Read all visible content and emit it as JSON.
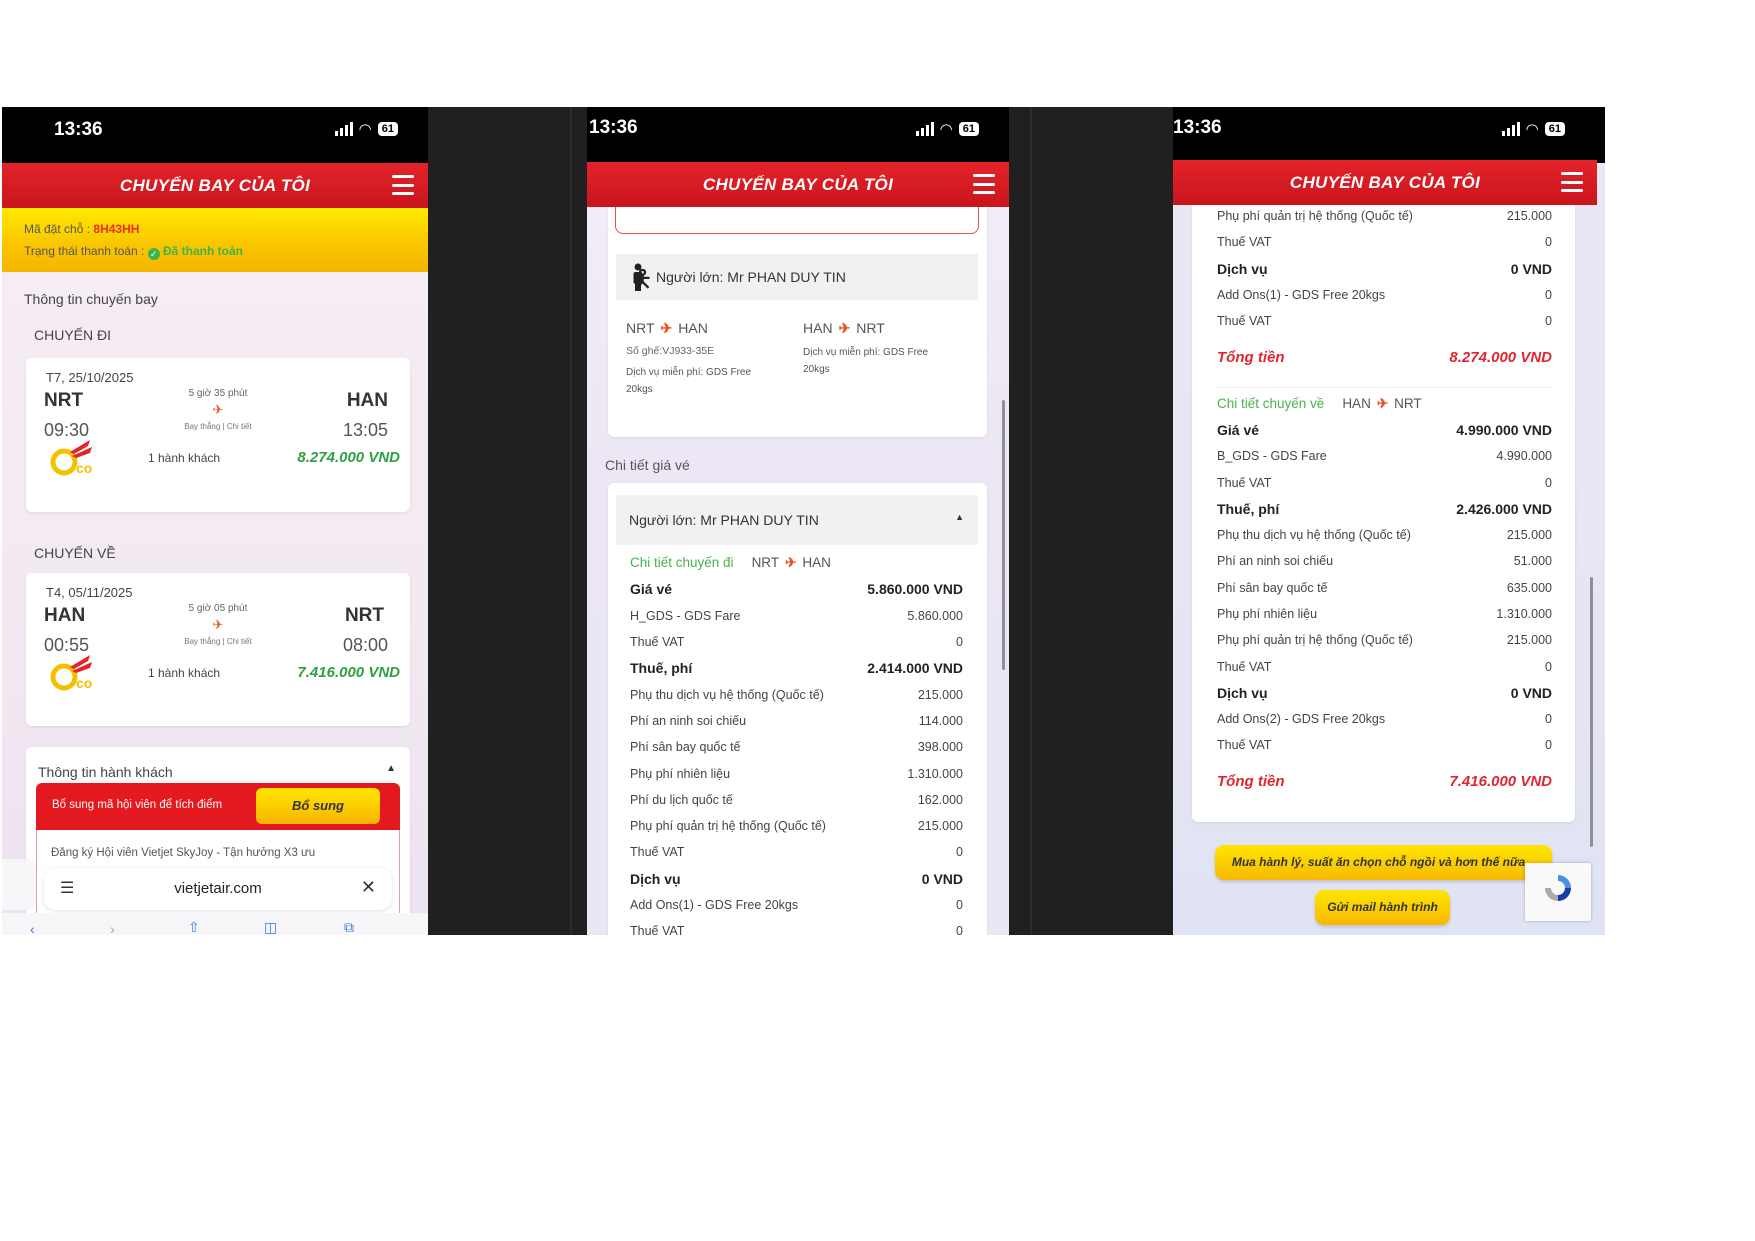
{
  "status_bar": {
    "time": "13:36",
    "battery": "61"
  },
  "app_header": {
    "title": "CHUYẾN BAY CỦA TÔI"
  },
  "phone1": {
    "booking_label": "Mã đặt chỗ :",
    "booking_code": "8H43HH",
    "payment_label": "Trạng thái thanh toán :",
    "payment_status": "Đã thanh toán",
    "section_title": "Thông tin chuyến bay",
    "outbound": {
      "heading": "CHUYẾN ĐI",
      "date": "T7, 25/10/2025",
      "from": "NRT",
      "to": "HAN",
      "depart": "09:30",
      "arrive": "13:05",
      "duration": "5 giờ 35 phút",
      "detail": "Bay thẳng | Chi tiết",
      "pax": "1 hành khách",
      "price": "8.274.000 VND",
      "fare_class": "Eco"
    },
    "return": {
      "heading": "CHUYẾN VỀ",
      "date": "T4, 05/11/2025",
      "from": "HAN",
      "to": "NRT",
      "depart": "00:55",
      "arrive": "08:00",
      "duration": "5 giờ 05 phút",
      "detail": "Bay thẳng | Chi tiết",
      "pax": "1 hành khách",
      "price": "7.416.000 VND",
      "fare_class": "Eco"
    },
    "passenger_panel_title": "Thông tin hành khách",
    "member_banner": "Bổ sung mã hội viên để tích điểm",
    "member_button": "Bổ sung",
    "member_promo": "Đăng ký Hội viên Vietjet SkyJoy - Tận hưởng X3 ưu",
    "url": "vietjetair.com"
  },
  "phone2": {
    "passenger": "Người lớn: Mr PHAN DUY TIN",
    "leg1": {
      "from": "NRT",
      "to": "HAN",
      "seat": "Số ghế:VJ933-35E",
      "service": "Dịch vụ miễn phí: GDS Free 20kgs"
    },
    "leg2": {
      "from": "HAN",
      "to": "NRT",
      "service": "Dịch vụ miễn phí: GDS Free 20kgs"
    },
    "fare_section_title": "Chi tiết giá vé",
    "fare_passenger": "Người lớn: Mr PHAN DUY TIN",
    "rows": [
      {
        "type": "section",
        "label": "Chi tiết chuyến đi",
        "from": "NRT",
        "to": "HAN"
      },
      {
        "type": "bold",
        "label": "Giá vé",
        "value": "5.860.000 VND"
      },
      {
        "type": "normal",
        "label": "H_GDS - GDS Fare",
        "value": "5.860.000"
      },
      {
        "type": "normal",
        "label": "Thuế VAT",
        "value": "0"
      },
      {
        "type": "bold",
        "label": "Thuế, phí",
        "value": "2.414.000 VND"
      },
      {
        "type": "normal",
        "label": "Phụ thu dịch vụ hệ thống (Quốc tế)",
        "value": "215.000"
      },
      {
        "type": "normal",
        "label": "Phí an ninh soi chiếu",
        "value": "114.000"
      },
      {
        "type": "normal",
        "label": "Phí sân bay quốc tế",
        "value": "398.000"
      },
      {
        "type": "normal",
        "label": "Phụ phí nhiên liệu",
        "value": "1.310.000"
      },
      {
        "type": "normal",
        "label": "Phí du lịch quốc tế",
        "value": "162.000"
      },
      {
        "type": "normal",
        "label": "Phụ phí quản trị hệ thống (Quốc tế)",
        "value": "215.000"
      },
      {
        "type": "normal",
        "label": "Thuế VAT",
        "value": "0"
      },
      {
        "type": "bold",
        "label": "Dịch vụ",
        "value": "0 VND"
      },
      {
        "type": "normal",
        "label": "Add Ons(1) - GDS Free 20kgs",
        "value": "0"
      },
      {
        "type": "normal",
        "label": "Thuế VAT",
        "value": "0"
      }
    ]
  },
  "phone3": {
    "rows": [
      {
        "type": "normal",
        "label": "Phụ phí quản trị hệ thống (Quốc tế)",
        "value": "215.000"
      },
      {
        "type": "normal",
        "label": "Thuế VAT",
        "value": "0"
      },
      {
        "type": "bold",
        "label": "Dịch vụ",
        "value": "0 VND"
      },
      {
        "type": "normal",
        "label": "Add Ons(1) - GDS Free 20kgs",
        "value": "0"
      },
      {
        "type": "normal",
        "label": "Thuế VAT",
        "value": "0"
      },
      {
        "type": "total",
        "label": "Tổng tiền",
        "value": "8.274.000 VND"
      },
      {
        "type": "sep"
      },
      {
        "type": "section",
        "label": "Chi tiết chuyến về",
        "from": "HAN",
        "to": "NRT"
      },
      {
        "type": "bold",
        "label": "Giá vé",
        "value": "4.990.000 VND"
      },
      {
        "type": "normal",
        "label": "B_GDS - GDS Fare",
        "value": "4.990.000"
      },
      {
        "type": "normal",
        "label": "Thuế VAT",
        "value": "0"
      },
      {
        "type": "bold",
        "label": "Thuế, phí",
        "value": "2.426.000 VND"
      },
      {
        "type": "normal",
        "label": "Phụ thu dịch vụ hệ thống (Quốc tế)",
        "value": "215.000"
      },
      {
        "type": "normal",
        "label": "Phí an ninh soi chiếu",
        "value": "51.000"
      },
      {
        "type": "normal",
        "label": "Phí sân bay quốc tế",
        "value": "635.000"
      },
      {
        "type": "normal",
        "label": "Phụ phí nhiên liệu",
        "value": "1.310.000"
      },
      {
        "type": "normal",
        "label": "Phụ phí quản trị hệ thống (Quốc tế)",
        "value": "215.000"
      },
      {
        "type": "normal",
        "label": "Thuế VAT",
        "value": "0"
      },
      {
        "type": "bold",
        "label": "Dịch vụ",
        "value": "0 VND"
      },
      {
        "type": "normal",
        "label": "Add Ons(2) - GDS Free 20kgs",
        "value": "0"
      },
      {
        "type": "normal",
        "label": "Thuế VAT",
        "value": "0"
      },
      {
        "type": "total",
        "label": "Tổng tiền",
        "value": "7.416.000 VND"
      }
    ],
    "buy_more_button": "Mua hành lý, suất ăn chọn chỗ ngồi và hơn thế nữa...",
    "email_button": "Gửi mail hành trình"
  },
  "colors": {
    "brand_red": "#d71920",
    "brand_yellow": "#fcd200",
    "price_green": "#2ea043",
    "total_red": "#e0262e"
  }
}
